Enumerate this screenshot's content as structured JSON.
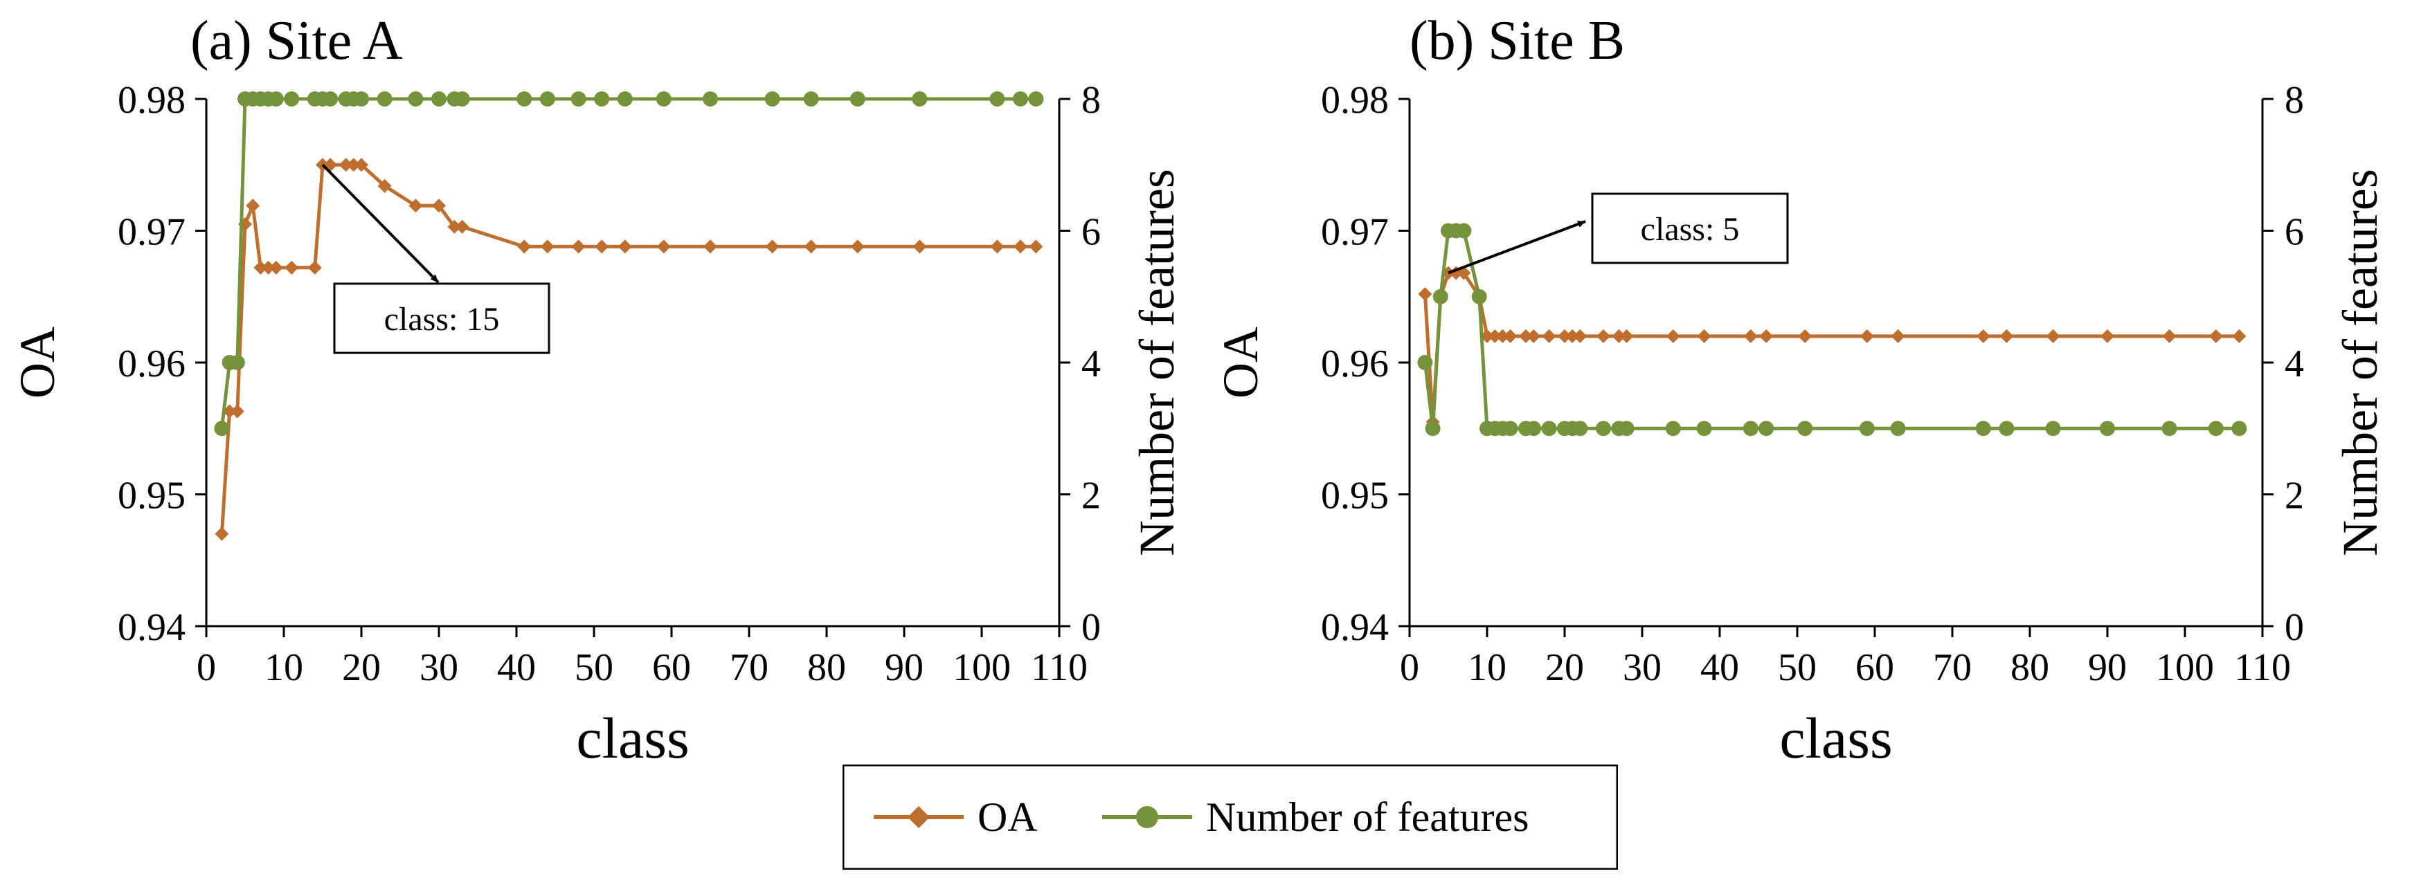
{
  "colors": {
    "oa": "#BE6E2E",
    "features": "#76933C",
    "axis": "#000000",
    "background": "#FFFFFF"
  },
  "legend": {
    "oa_label": "OA",
    "features_label": "Number of features"
  },
  "chart_data": [
    {
      "type": "line",
      "title": "(a) Site A",
      "xlabel": "class",
      "ylabel_left": "OA",
      "ylabel_right": "Number of features",
      "xlim": [
        0,
        110
      ],
      "ylim_left": [
        0.94,
        0.98
      ],
      "ylim_right": [
        0,
        8
      ],
      "xticks": [
        "0",
        "10",
        "20",
        "30",
        "40",
        "50",
        "60",
        "70",
        "80",
        "90",
        "100",
        "110"
      ],
      "yticks_left": [
        "0.94",
        "0.95",
        "0.96",
        "0.97",
        "0.98"
      ],
      "yticks_right": [
        "0",
        "2",
        "4",
        "6",
        "8"
      ],
      "grid": false,
      "series": [
        {
          "name": "OA",
          "axis": "left",
          "marker": "diamond",
          "x": [
            2,
            3,
            4,
            5,
            6,
            7,
            8,
            9,
            11,
            14,
            15,
            16,
            18,
            19,
            20,
            23,
            27,
            30,
            32,
            33,
            41,
            44,
            48,
            51,
            54,
            59,
            65,
            73,
            78,
            84,
            92,
            102,
            105,
            107
          ],
          "y": [
            0.947,
            0.9563,
            0.9563,
            0.9705,
            0.9719,
            0.9672,
            0.9672,
            0.9672,
            0.9672,
            0.9672,
            0.975,
            0.975,
            0.975,
            0.975,
            0.975,
            0.9734,
            0.9719,
            0.9719,
            0.9703,
            0.9703,
            0.9688,
            0.9688,
            0.9688,
            0.9688,
            0.9688,
            0.9688,
            0.9688,
            0.9688,
            0.9688,
            0.9688,
            0.9688,
            0.9688,
            0.9688,
            0.9688
          ]
        },
        {
          "name": "Number of features",
          "axis": "right",
          "marker": "circle",
          "x": [
            2,
            3,
            4,
            5,
            6,
            7,
            8,
            9,
            11,
            14,
            15,
            16,
            18,
            19,
            20,
            23,
            27,
            30,
            32,
            33,
            41,
            44,
            48,
            51,
            54,
            59,
            65,
            73,
            78,
            84,
            92,
            102,
            105,
            107
          ],
          "y": [
            3,
            4,
            4,
            8,
            8,
            8,
            8,
            8,
            8,
            8,
            8,
            8,
            8,
            8,
            8,
            8,
            8,
            8,
            8,
            8,
            8,
            8,
            8,
            8,
            8,
            8,
            8,
            8,
            8,
            8,
            8,
            8,
            8,
            8
          ]
        }
      ],
      "annotation": {
        "text": "class: 15",
        "x": 15,
        "y": 0.975
      }
    },
    {
      "type": "line",
      "title": "(b) Site B",
      "xlabel": "class",
      "ylabel_left": "OA",
      "ylabel_right": "Number of features",
      "xlim": [
        0,
        110
      ],
      "ylim_left": [
        0.94,
        0.98
      ],
      "ylim_right": [
        0,
        8
      ],
      "xticks": [
        "0",
        "10",
        "20",
        "30",
        "40",
        "50",
        "60",
        "70",
        "80",
        "90",
        "100",
        "110"
      ],
      "yticks_left": [
        "0.94",
        "0.95",
        "0.96",
        "0.97",
        "0.98"
      ],
      "yticks_right": [
        "0",
        "2",
        "4",
        "6",
        "8"
      ],
      "grid": false,
      "series": [
        {
          "name": "OA",
          "axis": "left",
          "marker": "diamond",
          "x": [
            2,
            3,
            4,
            5,
            6,
            7,
            9,
            10,
            11,
            12,
            13,
            15,
            16,
            18,
            20,
            21,
            22,
            25,
            27,
            28,
            34,
            38,
            44,
            46,
            51,
            59,
            63,
            74,
            77,
            83,
            90,
            98,
            104,
            107
          ],
          "y": [
            0.9652,
            0.9555,
            0.965,
            0.9668,
            0.9668,
            0.9668,
            0.965,
            0.962,
            0.962,
            0.962,
            0.962,
            0.962,
            0.962,
            0.962,
            0.962,
            0.962,
            0.962,
            0.962,
            0.962,
            0.962,
            0.962,
            0.962,
            0.962,
            0.962,
            0.962,
            0.962,
            0.962,
            0.962,
            0.962,
            0.962,
            0.962,
            0.962,
            0.962,
            0.962
          ]
        },
        {
          "name": "Number of features",
          "axis": "right",
          "marker": "circle",
          "x": [
            2,
            3,
            4,
            5,
            6,
            7,
            9,
            10,
            11,
            12,
            13,
            15,
            16,
            18,
            20,
            21,
            22,
            25,
            27,
            28,
            34,
            38,
            44,
            46,
            51,
            59,
            63,
            74,
            77,
            83,
            90,
            98,
            104,
            107
          ],
          "y": [
            4,
            3,
            5,
            6,
            6,
            6,
            5,
            3,
            3,
            3,
            3,
            3,
            3,
            3,
            3,
            3,
            3,
            3,
            3,
            3,
            3,
            3,
            3,
            3,
            3,
            3,
            3,
            3,
            3,
            3,
            3,
            3,
            3,
            3
          ]
        }
      ],
      "annotation": {
        "text": "class: 5",
        "x": 5,
        "y": 0.9668
      }
    }
  ]
}
